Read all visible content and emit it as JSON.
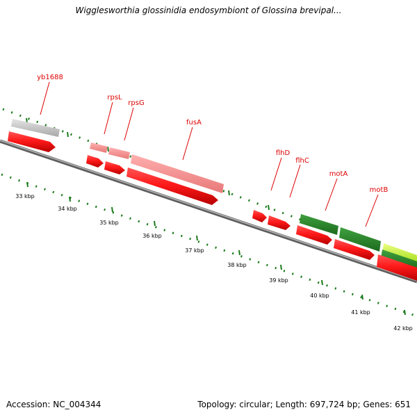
{
  "title": "Wigglesworthia glossinidia endosymbiont of Glossina brevipal...",
  "footer": {
    "accession": "Accession: NC_004344",
    "summary": "Topology: circular; Length: 697,724 bp; Genes: 651"
  },
  "colors": {
    "backbone": "#808080",
    "tick_green": "#1a7a1a",
    "gene_label": "#dd0000"
  },
  "features": [
    {
      "name": "yb1688",
      "style": "grey",
      "strand": "upper"
    },
    {
      "name": "yb1688-cds",
      "style": "red",
      "strand": "lower"
    },
    {
      "name": "rpsL",
      "style": "pink",
      "strand": "upper"
    },
    {
      "name": "rpsL-cds",
      "style": "red",
      "strand": "lower"
    },
    {
      "name": "rpsG",
      "style": "pink",
      "strand": "upper"
    },
    {
      "name": "rpsG-cds",
      "style": "red",
      "strand": "lower"
    },
    {
      "name": "fusA",
      "style": "pink",
      "strand": "upper"
    },
    {
      "name": "fusA-cds",
      "style": "red",
      "strand": "lower"
    },
    {
      "name": "flhD-cds",
      "style": "red",
      "strand": "lower"
    },
    {
      "name": "flhC-cds",
      "style": "red",
      "strand": "lower"
    },
    {
      "name": "motA",
      "style": "green",
      "strand": "upper"
    },
    {
      "name": "motA-cds",
      "style": "red",
      "strand": "lower"
    },
    {
      "name": "motB",
      "style": "green",
      "strand": "upper"
    },
    {
      "name": "motB-cds",
      "style": "red",
      "strand": "lower"
    },
    {
      "name": "next-gene",
      "style": "lightgreen",
      "strand": "upper"
    },
    {
      "name": "next-gene-cds",
      "style": "red",
      "strand": "lower"
    }
  ],
  "gene_labels": [
    "yb1688",
    "rpsL",
    "rpsG",
    "fusA",
    "flhD",
    "flhC",
    "motA",
    "motB"
  ],
  "kbp_labels": [
    "33 kbp",
    "34 kbp",
    "35 kbp",
    "36 kbp",
    "37 kbp",
    "38 kbp",
    "39 kbp",
    "40 kbp",
    "41 kbp",
    "42 kbp"
  ]
}
